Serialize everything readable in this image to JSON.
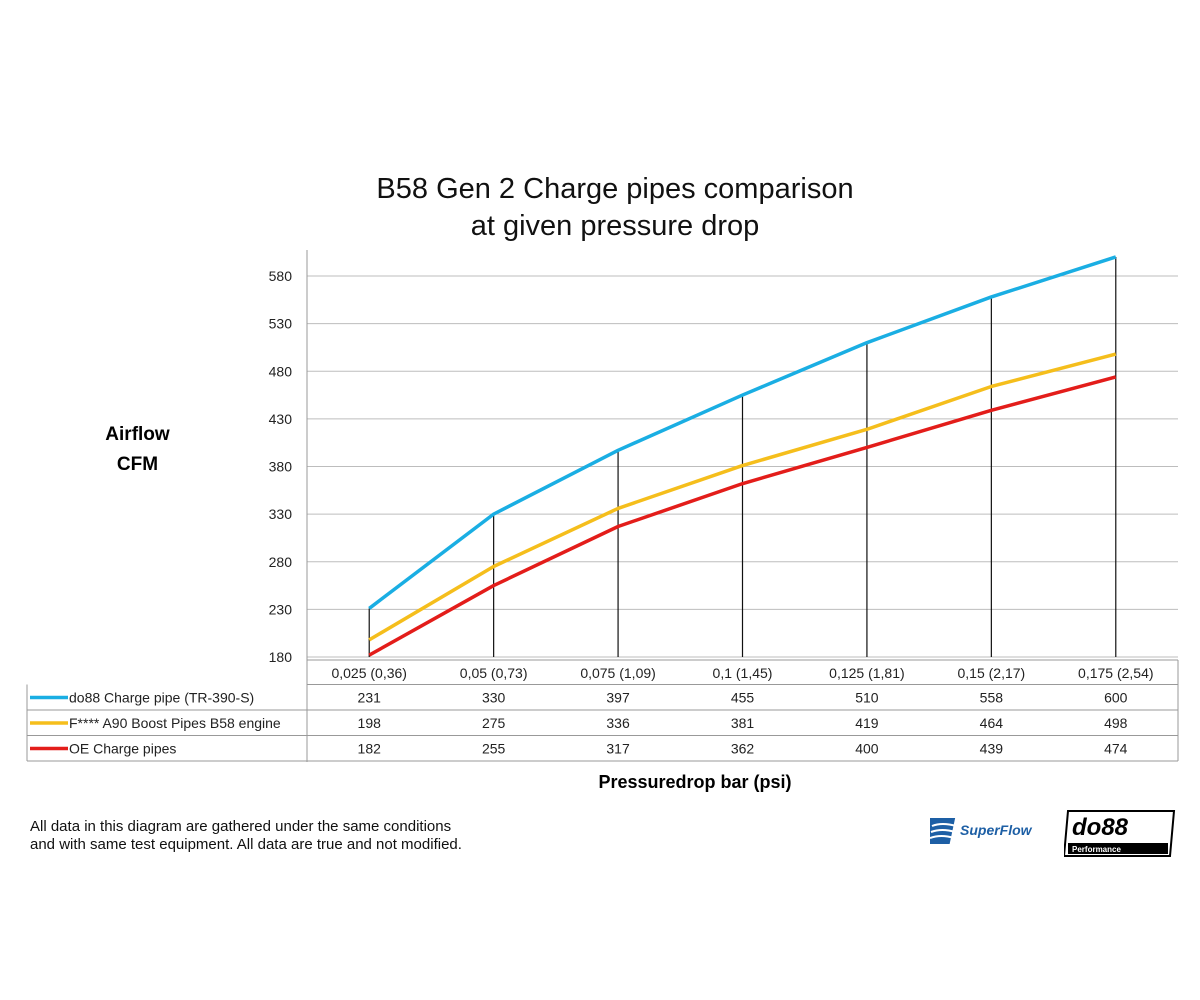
{
  "chart_data": {
    "type": "line",
    "title": "B58 Gen 2 Charge pipes comparison",
    "subtitle": "at given pressure drop",
    "ylabel": [
      "Airflow",
      "CFM"
    ],
    "xlabel": "Pressuredrop bar (psi)",
    "categories": [
      "0,025 (0,36)",
      "0,05 (0,73)",
      "0,075 (1,09)",
      "0,1 (1,45)",
      "0,125 (1,81)",
      "0,15 (2,17)",
      "0,175 (2,54)"
    ],
    "yticks": [
      180,
      230,
      280,
      330,
      380,
      430,
      480,
      530,
      580
    ],
    "ylim": [
      180,
      600
    ],
    "grid": true,
    "legend": "data-table below chart",
    "series": [
      {
        "name": "do88 Charge pipe (TR-390-S)",
        "color": "#1aaee3",
        "values": [
          231,
          330,
          397,
          455,
          510,
          558,
          600
        ]
      },
      {
        "name": "F**** A90 Boost Pipes B58 engine",
        "color": "#f5be1c",
        "values": [
          198,
          275,
          336,
          381,
          419,
          464,
          498
        ]
      },
      {
        "name": "OE Charge pipes",
        "color": "#e31d1a",
        "values": [
          182,
          255,
          317,
          362,
          400,
          439,
          474
        ]
      }
    ]
  },
  "note": [
    "All data in this diagram are gathered under the same conditions",
    "and with same test equipment. All data are true and not modified."
  ],
  "logos": {
    "superflow": "SuperFlow",
    "do88": "do88",
    "do88_sub": "Performance"
  }
}
